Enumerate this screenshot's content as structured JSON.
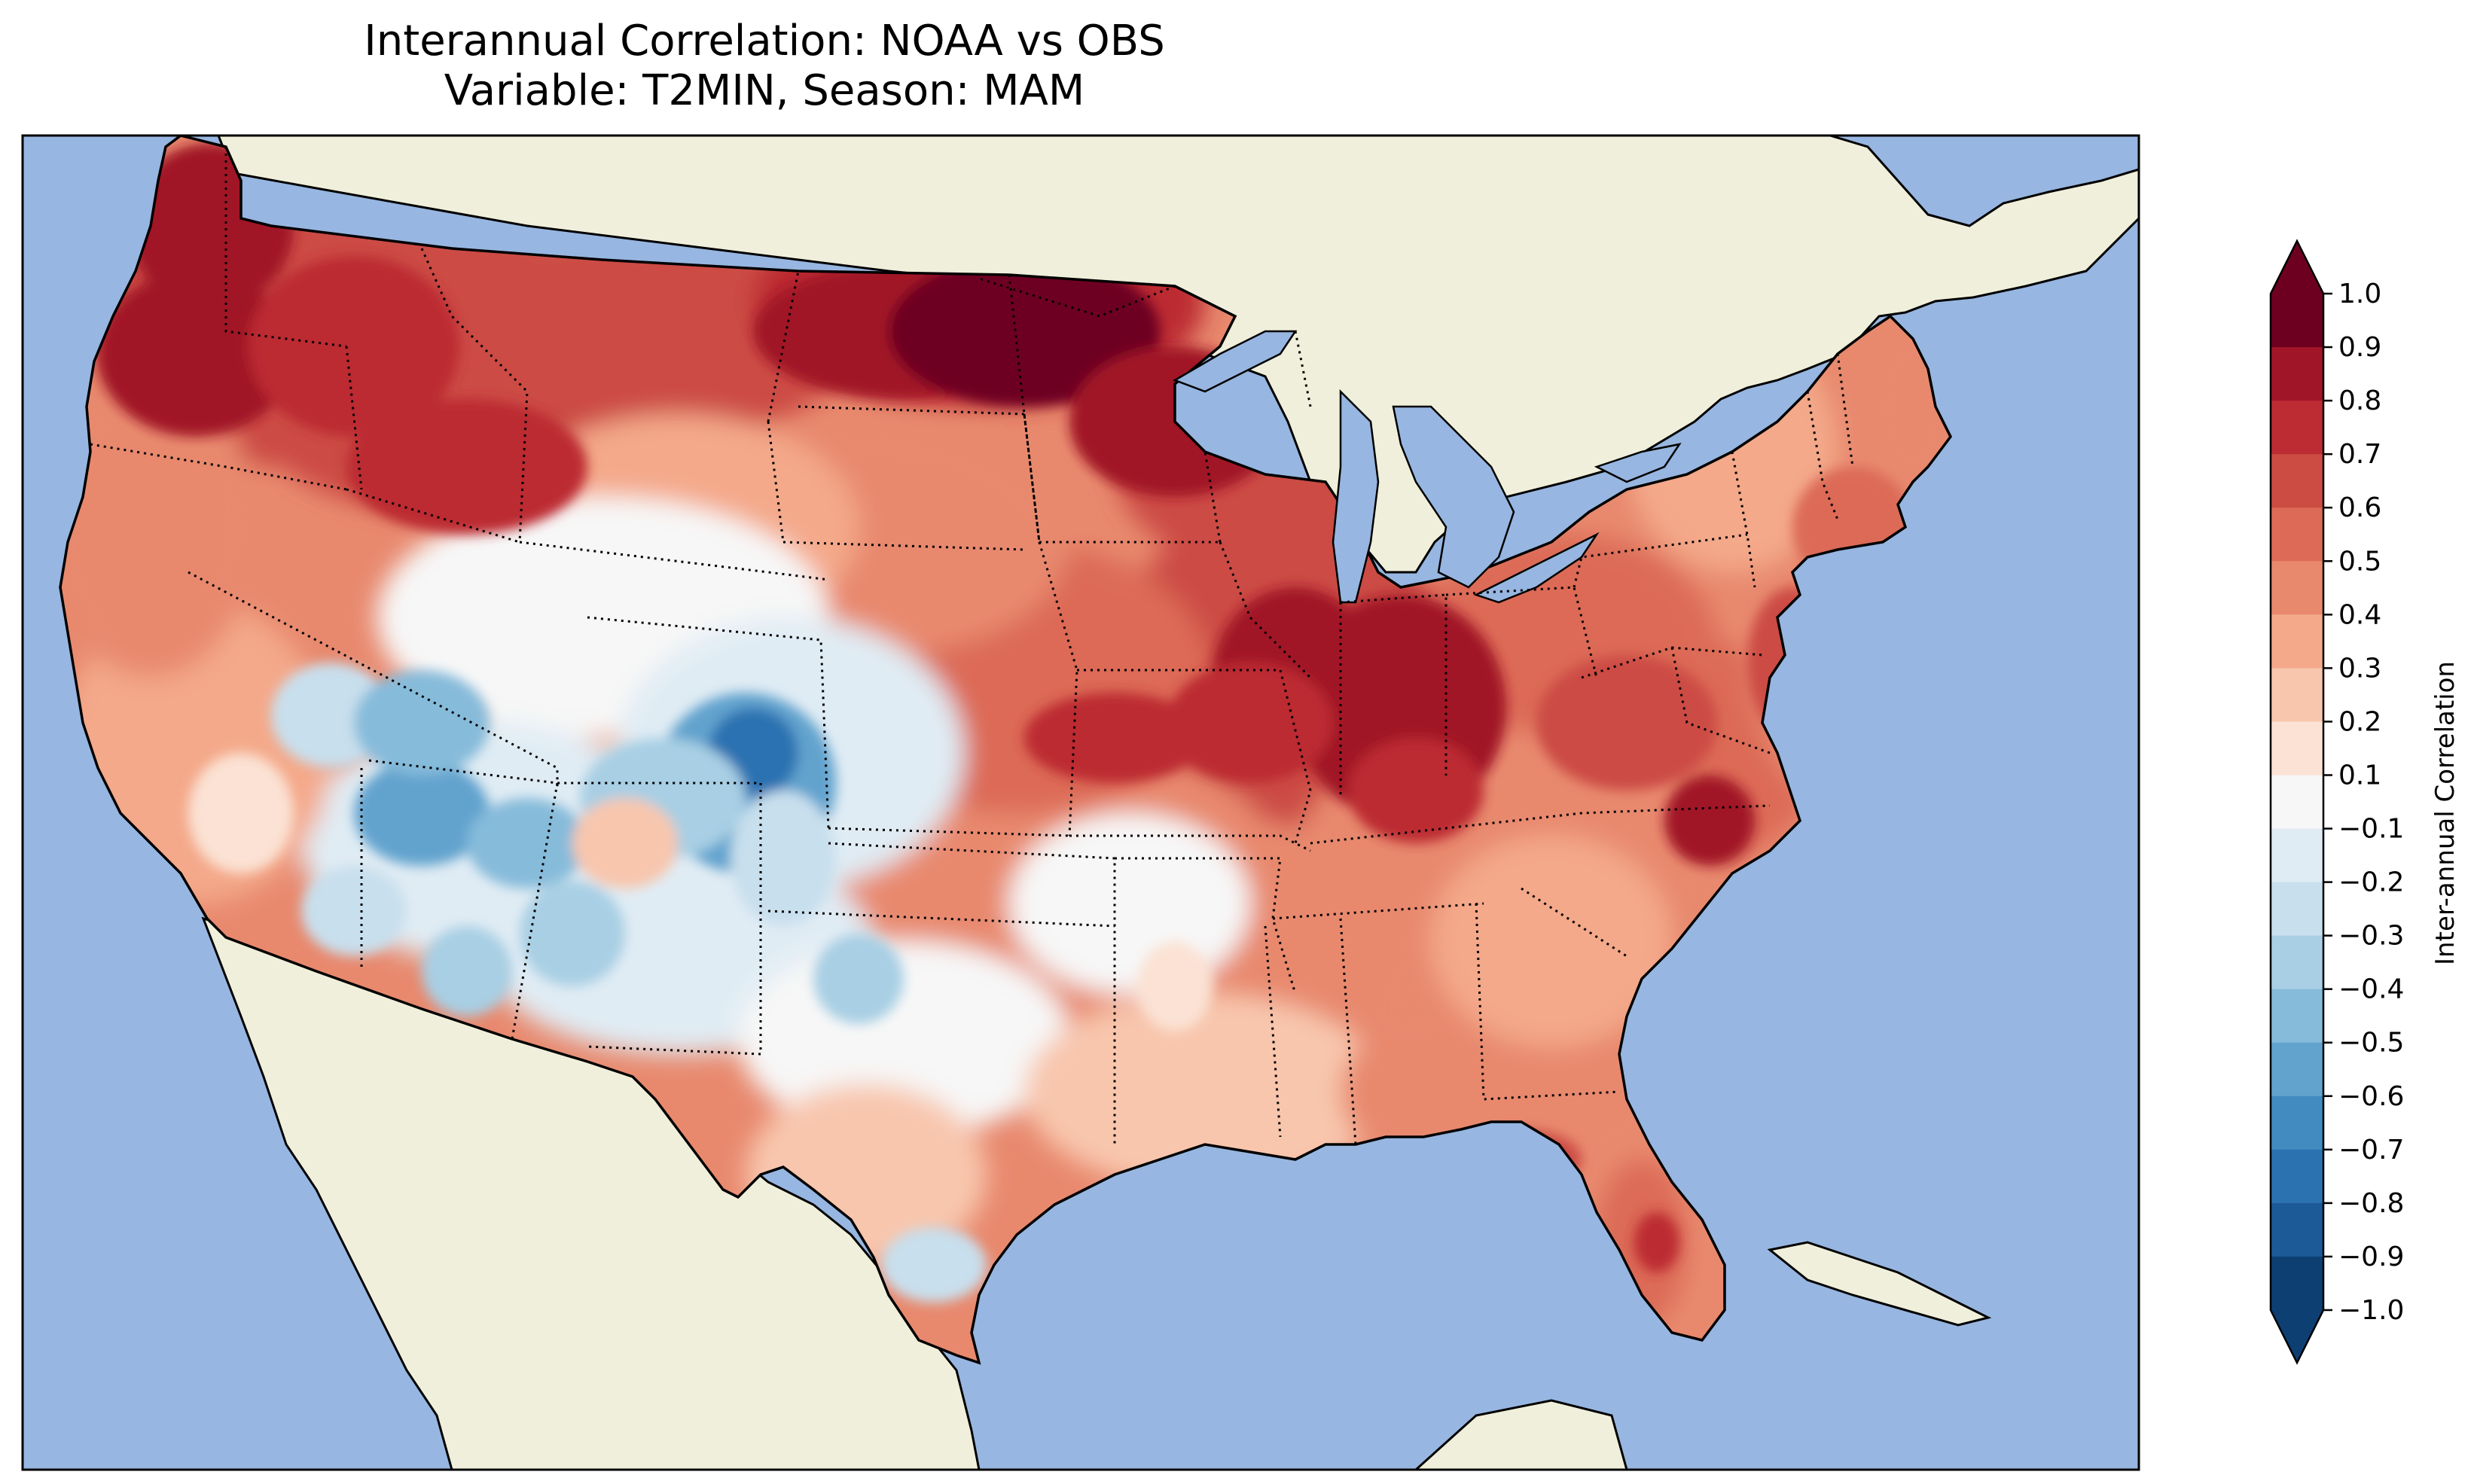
{
  "title": {
    "line1": "Interannual Correlation: NOAA vs OBS",
    "line2": "Variable: T2MIN, Season: MAM"
  },
  "colorbar": {
    "label": "Inter-annual Correlation",
    "ticks": [
      "1.0",
      "0.9",
      "0.8",
      "0.7",
      "0.6",
      "0.5",
      "0.4",
      "0.3",
      "0.2",
      "0.1",
      "−0.1",
      "−0.2",
      "−0.3",
      "−0.4",
      "−0.5",
      "−0.6",
      "−0.7",
      "−0.8",
      "−0.9",
      "−1.0"
    ],
    "colors": [
      "#6d0020",
      "#a11528",
      "#bc2c32",
      "#cc4c44",
      "#dc6a57",
      "#e8896e",
      "#f4a98a",
      "#f8c6ad",
      "#fbe2d4",
      "#f7f7f7",
      "#e0ecf4",
      "#c8dfed",
      "#a8cfe4",
      "#86bbda",
      "#62a3ce",
      "#418bc0",
      "#2b72b1",
      "#1c5997",
      "#0e3f73"
    ],
    "extend": "both"
  },
  "map_colors": {
    "ocean": "#97b6e1",
    "land": "#efefdb",
    "border": "#000000"
  }
}
